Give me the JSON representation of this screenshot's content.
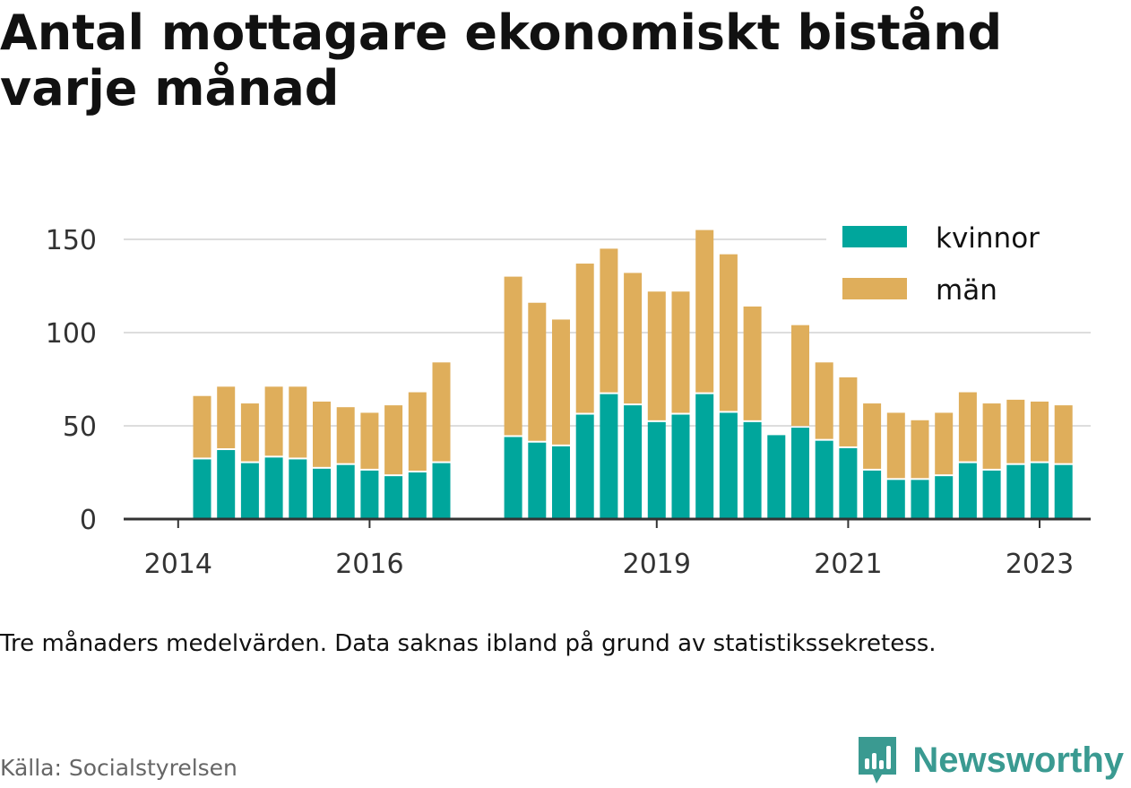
{
  "title": "Antal mottagare ekonomiskt bistånd varje månad",
  "note": "Tre månaders medelvärden. Data saknas ibland på grund av statistikssekretess.",
  "source": "Källa: Socialstyrelsen",
  "brand": {
    "name": "Newsworthy"
  },
  "colors": {
    "kvinnor": "#00a69c",
    "man": "#dfae5b",
    "axis": "#333333",
    "grid": "#dddddd"
  },
  "chart_data": {
    "type": "bar",
    "stacked": true,
    "x_tick_labels": [
      "2014",
      "2016",
      "2019",
      "2021",
      "2023"
    ],
    "y_ticks": [
      0,
      50,
      100,
      150
    ],
    "ylim": [
      0,
      160
    ],
    "legend": {
      "position": "top-right",
      "items": [
        "kvinnor",
        "män"
      ]
    },
    "categories": [
      "2014-04",
      "2014-07",
      "2014-10",
      "2015-01",
      "2015-04",
      "2015-07",
      "2015-10",
      "2016-01",
      "2016-04",
      "2016-07",
      "2016-10",
      "2017-01",
      "2017-07",
      "2017-10",
      "2018-01",
      "2018-04",
      "2018-07",
      "2018-10",
      "2019-01",
      "2019-04",
      "2019-07",
      "2019-10",
      "2020-01",
      "2020-04",
      "2020-07",
      "2020-10",
      "2021-01",
      "2021-04",
      "2021-07",
      "2021-10",
      "2022-01",
      "2022-04",
      "2022-07",
      "2022-10",
      "2023-01",
      "2023-04"
    ],
    "series": [
      {
        "name": "kvinnor",
        "color": "#00a69c",
        "values": [
          32,
          37,
          30,
          33,
          32,
          27,
          29,
          26,
          23,
          25,
          30,
          null,
          44,
          41,
          39,
          56,
          67,
          61,
          52,
          56,
          67,
          57,
          52,
          45,
          49,
          42,
          38,
          26,
          21,
          21,
          23,
          30,
          26,
          29,
          30,
          29
        ]
      },
      {
        "name": "män",
        "color": "#dfae5b",
        "values": [
          34,
          34,
          32,
          38,
          39,
          36,
          31,
          31,
          38,
          43,
          54,
          null,
          86,
          75,
          68,
          81,
          78,
          71,
          70,
          66,
          88,
          85,
          62,
          null,
          55,
          42,
          38,
          36,
          36,
          32,
          34,
          38,
          36,
          35,
          33,
          32
        ]
      }
    ]
  }
}
